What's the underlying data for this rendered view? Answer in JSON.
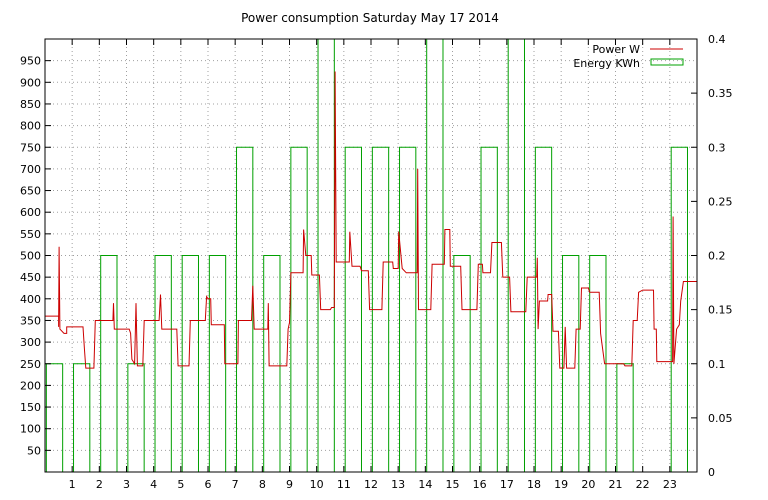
{
  "chart_data": {
    "type": "line",
    "title": "Power consumption Saturday May 17 2014",
    "x_ticks": [
      "1",
      "2",
      "3",
      "4",
      "5",
      "6",
      "7",
      "8",
      "9",
      "10",
      "11",
      "12",
      "13",
      "14",
      "15",
      "16",
      "17",
      "18",
      "19",
      "20",
      "21",
      "22",
      "23"
    ],
    "xlim": [
      0,
      24
    ],
    "y_left_ticks": [
      "50",
      "100",
      "150",
      "200",
      "250",
      "300",
      "350",
      "400",
      "450",
      "500",
      "550",
      "600",
      "650",
      "700",
      "750",
      "800",
      "850",
      "900",
      "950"
    ],
    "ylim_left": [
      0,
      1000
    ],
    "y_right_ticks": [
      "0",
      "0.05",
      "0.1",
      "0.15",
      "0.2",
      "0.25",
      "0.3",
      "0.35",
      "0.4"
    ],
    "ylim_right": [
      0,
      0.4
    ],
    "grid": true,
    "legend_position": "top-right",
    "colors": {
      "power": "#cc0000",
      "energy": "#00a000"
    },
    "series": [
      {
        "name": "Power W",
        "axis": "left",
        "style": "step-line",
        "points": [
          [
            0.0,
            360
          ],
          [
            0.5,
            360
          ],
          [
            0.5,
            335
          ],
          [
            0.52,
            520
          ],
          [
            0.55,
            330
          ],
          [
            0.7,
            320
          ],
          [
            0.8,
            320
          ],
          [
            0.8,
            335
          ],
          [
            1.4,
            335
          ],
          [
            1.45,
            285
          ],
          [
            1.5,
            240
          ],
          [
            1.8,
            240
          ],
          [
            1.85,
            350
          ],
          [
            2.5,
            350
          ],
          [
            2.52,
            390
          ],
          [
            2.55,
            330
          ],
          [
            3.1,
            330
          ],
          [
            3.15,
            320
          ],
          [
            3.2,
            260
          ],
          [
            3.3,
            250
          ],
          [
            3.35,
            390
          ],
          [
            3.4,
            245
          ],
          [
            3.6,
            245
          ],
          [
            3.65,
            350
          ],
          [
            4.2,
            350
          ],
          [
            4.25,
            410
          ],
          [
            4.3,
            330
          ],
          [
            4.85,
            330
          ],
          [
            4.9,
            245
          ],
          [
            5.3,
            245
          ],
          [
            5.35,
            350
          ],
          [
            5.9,
            350
          ],
          [
            5.95,
            405
          ],
          [
            6.0,
            400
          ],
          [
            6.1,
            400
          ],
          [
            6.12,
            340
          ],
          [
            6.6,
            340
          ],
          [
            6.62,
            250
          ],
          [
            7.1,
            250
          ],
          [
            7.12,
            350
          ],
          [
            7.6,
            350
          ],
          [
            7.65,
            430
          ],
          [
            7.7,
            330
          ],
          [
            8.2,
            330
          ],
          [
            8.22,
            390
          ],
          [
            8.25,
            245
          ],
          [
            8.9,
            245
          ],
          [
            8.95,
            330
          ],
          [
            9.0,
            345
          ],
          [
            9.05,
            460
          ],
          [
            9.5,
            460
          ],
          [
            9.52,
            560
          ],
          [
            9.6,
            500
          ],
          [
            9.8,
            500
          ],
          [
            9.82,
            455
          ],
          [
            10.1,
            455
          ],
          [
            10.15,
            375
          ],
          [
            10.5,
            375
          ],
          [
            10.55,
            380
          ],
          [
            10.65,
            380
          ],
          [
            10.68,
            925
          ],
          [
            10.72,
            485
          ],
          [
            11.2,
            485
          ],
          [
            11.22,
            555
          ],
          [
            11.3,
            475
          ],
          [
            11.6,
            475
          ],
          [
            11.65,
            465
          ],
          [
            11.9,
            465
          ],
          [
            11.95,
            375
          ],
          [
            12.4,
            375
          ],
          [
            12.45,
            485
          ],
          [
            12.8,
            485
          ],
          [
            12.82,
            470
          ],
          [
            13.0,
            470
          ],
          [
            13.02,
            555
          ],
          [
            13.15,
            470
          ],
          [
            13.3,
            460
          ],
          [
            13.7,
            460
          ],
          [
            13.72,
            700
          ],
          [
            13.75,
            375
          ],
          [
            14.2,
            375
          ],
          [
            14.25,
            480
          ],
          [
            14.7,
            480
          ],
          [
            14.72,
            560
          ],
          [
            14.9,
            560
          ],
          [
            14.92,
            475
          ],
          [
            15.3,
            475
          ],
          [
            15.35,
            375
          ],
          [
            15.9,
            375
          ],
          [
            15.95,
            480
          ],
          [
            16.1,
            480
          ],
          [
            16.12,
            460
          ],
          [
            16.4,
            460
          ],
          [
            16.45,
            530
          ],
          [
            16.8,
            530
          ],
          [
            16.85,
            450
          ],
          [
            17.1,
            450
          ],
          [
            17.15,
            370
          ],
          [
            17.7,
            370
          ],
          [
            17.75,
            450
          ],
          [
            18.1,
            450
          ],
          [
            18.12,
            495
          ],
          [
            18.15,
            330
          ],
          [
            18.2,
            395
          ],
          [
            18.5,
            395
          ],
          [
            18.52,
            410
          ],
          [
            18.65,
            410
          ],
          [
            18.7,
            325
          ],
          [
            18.9,
            325
          ],
          [
            18.95,
            240
          ],
          [
            19.1,
            240
          ],
          [
            19.15,
            335
          ],
          [
            19.2,
            240
          ],
          [
            19.5,
            240
          ],
          [
            19.55,
            330
          ],
          [
            19.7,
            330
          ],
          [
            19.75,
            425
          ],
          [
            20.0,
            425
          ],
          [
            20.05,
            415
          ],
          [
            20.4,
            415
          ],
          [
            20.45,
            320
          ],
          [
            20.6,
            250
          ],
          [
            21.3,
            250
          ],
          [
            21.35,
            245
          ],
          [
            21.6,
            245
          ],
          [
            21.65,
            350
          ],
          [
            21.8,
            350
          ],
          [
            21.85,
            415
          ],
          [
            22.0,
            420
          ],
          [
            22.4,
            420
          ],
          [
            22.42,
            330
          ],
          [
            22.5,
            330
          ],
          [
            22.52,
            255
          ],
          [
            23.1,
            255
          ],
          [
            23.12,
            590
          ],
          [
            23.15,
            250
          ],
          [
            23.25,
            330
          ],
          [
            23.35,
            340
          ],
          [
            23.4,
            395
          ],
          [
            23.5,
            440
          ],
          [
            24.0,
            440
          ],
          [
            24.0,
            330
          ]
        ]
      },
      {
        "name": "Energy KWh",
        "axis": "right",
        "style": "boxes",
        "points": [
          [
            0,
            0.1
          ],
          [
            1,
            0.1
          ],
          [
            2,
            0.2
          ],
          [
            3,
            0.1
          ],
          [
            4,
            0.2
          ],
          [
            5,
            0.2
          ],
          [
            6,
            0.2
          ],
          [
            7,
            0.3
          ],
          [
            8,
            0.2
          ],
          [
            9,
            0.3
          ],
          [
            10,
            0.4
          ],
          [
            11,
            0.3
          ],
          [
            12,
            0.3
          ],
          [
            13,
            0.3
          ],
          [
            14,
            0.4
          ],
          [
            15,
            0.2
          ],
          [
            16,
            0.3
          ],
          [
            17,
            0.4
          ],
          [
            18,
            0.3
          ],
          [
            19,
            0.2
          ],
          [
            20,
            0.2
          ],
          [
            21,
            0.1
          ],
          [
            22,
            0
          ],
          [
            23,
            0.3
          ]
        ]
      }
    ]
  }
}
